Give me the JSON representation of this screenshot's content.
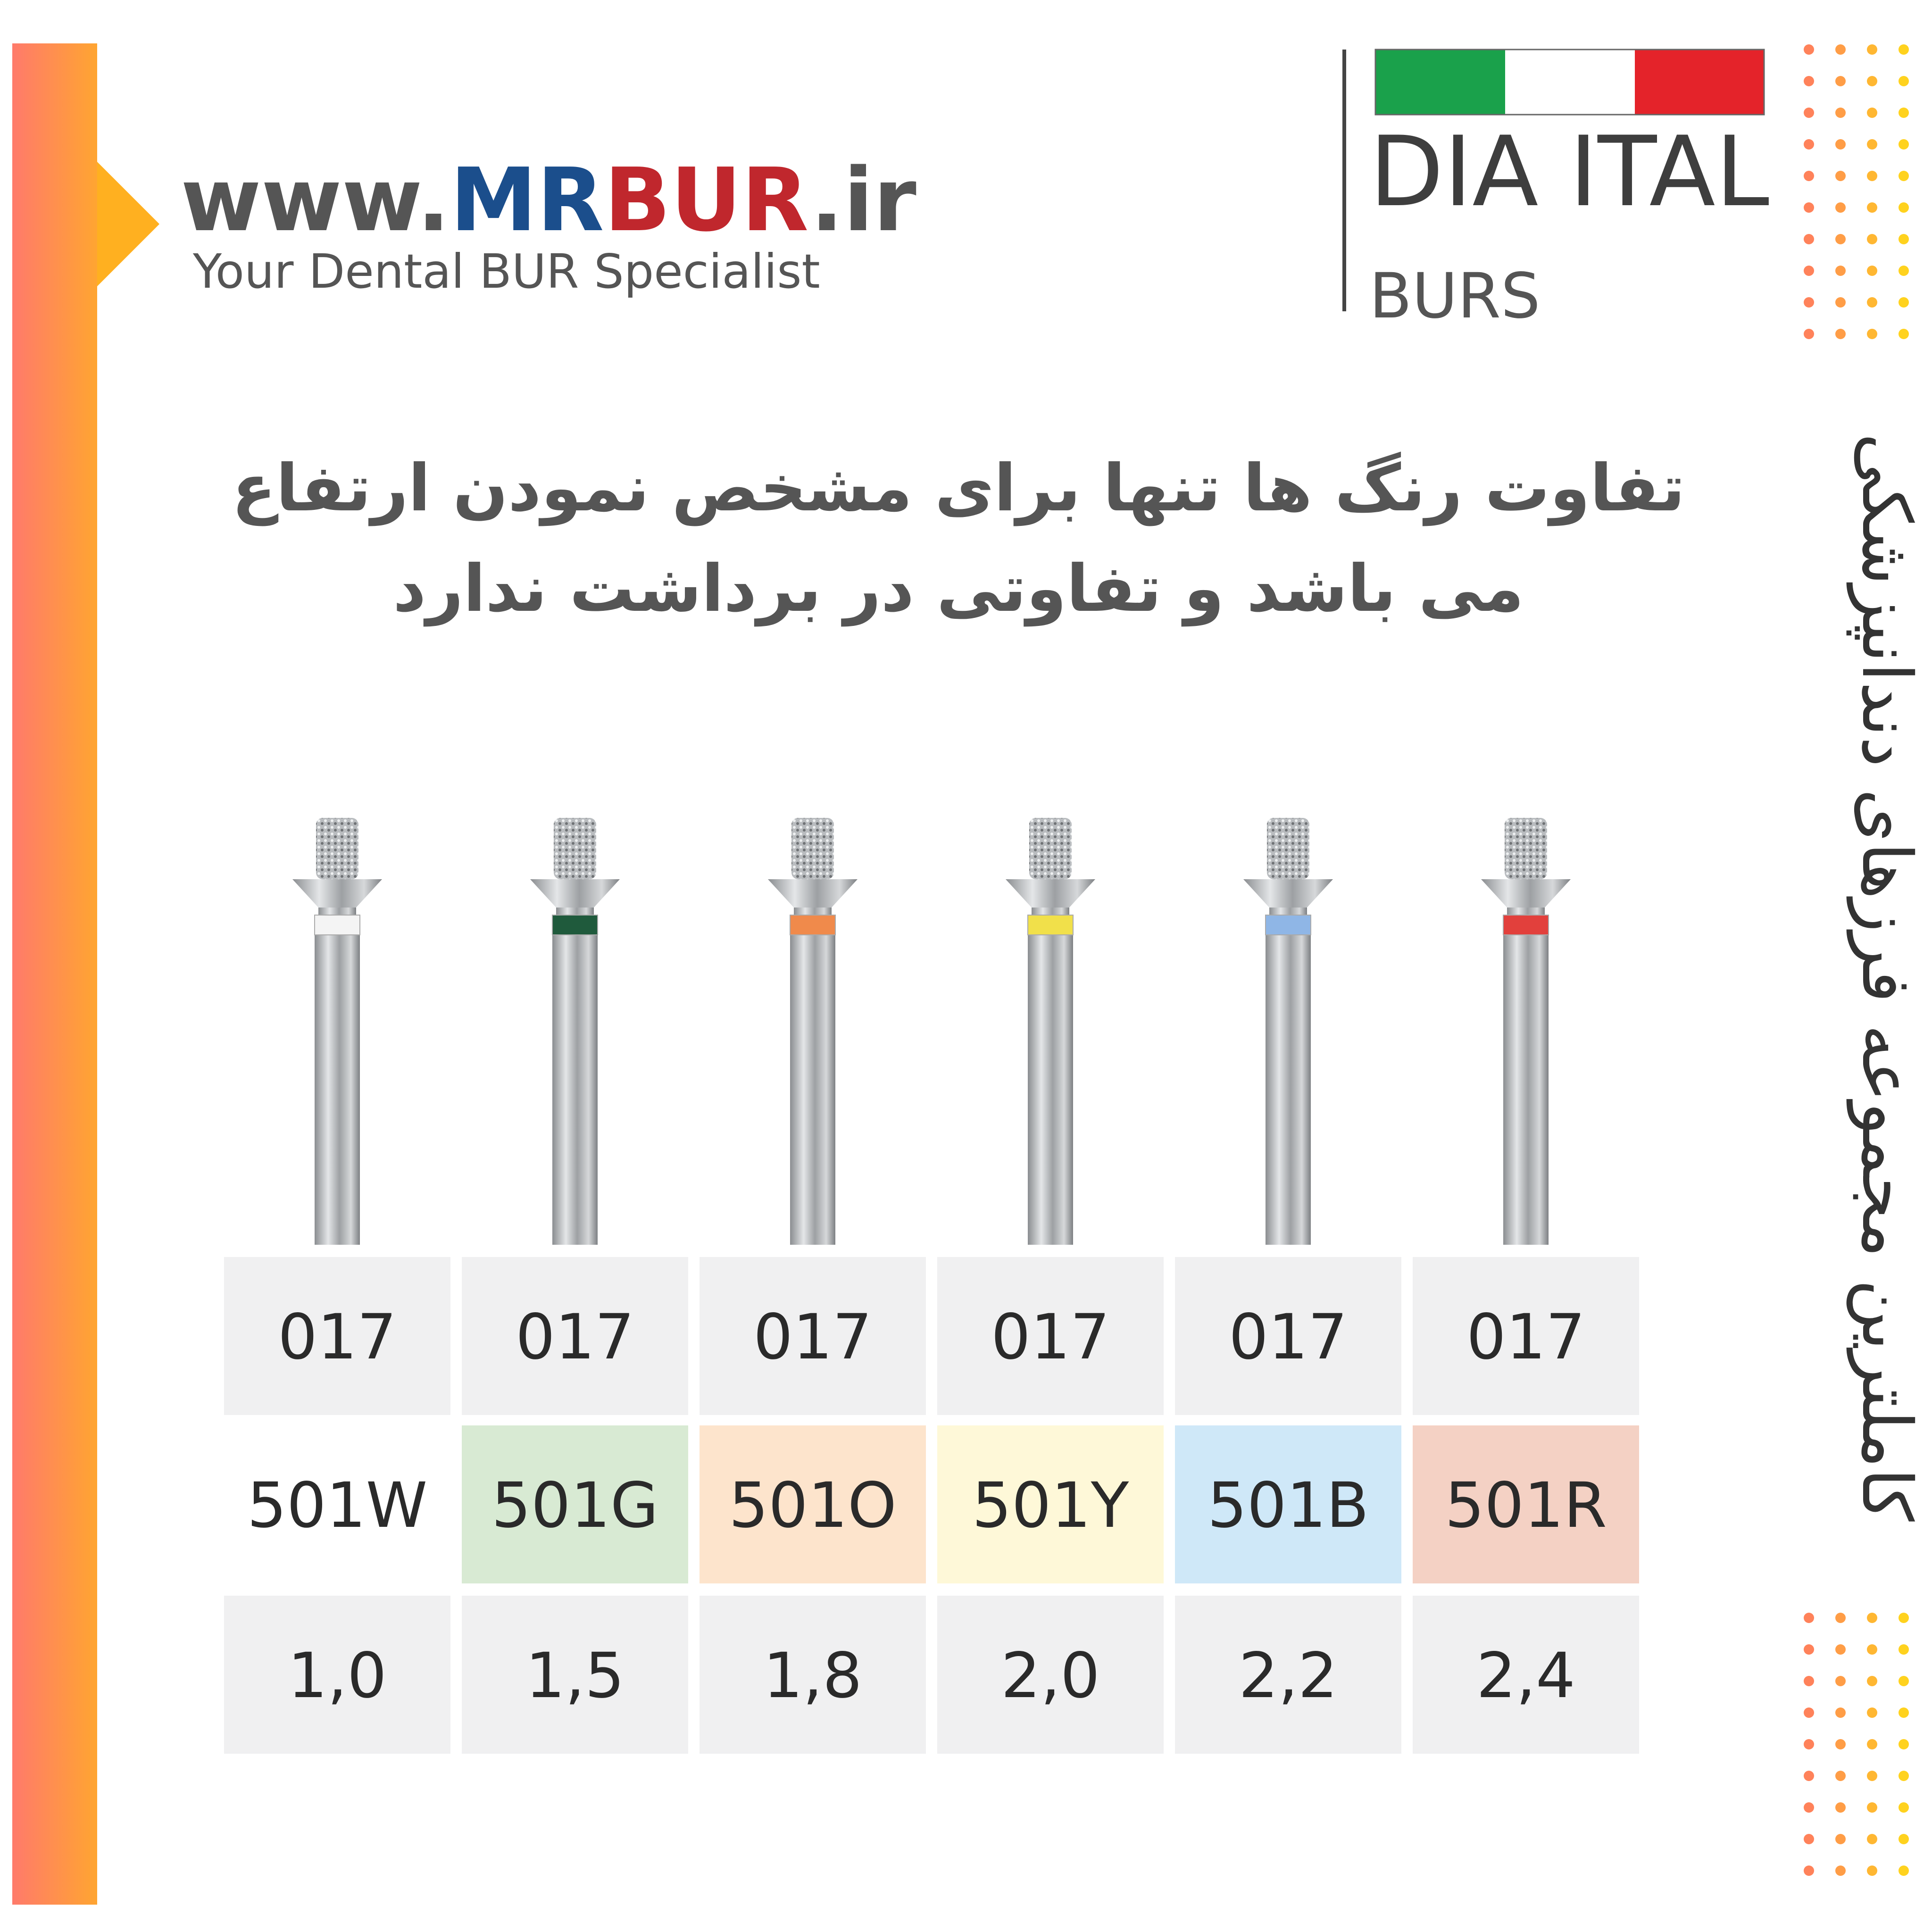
{
  "logo": {
    "prefix": "www.",
    "mr": "MR",
    "bur": "BUR",
    "suffix": ".ir",
    "tagline": "Your Dental BUR Specialist"
  },
  "brand": {
    "name": "DIA ITAL",
    "sub": "BURS"
  },
  "heading": {
    "line1": "تفاوت رنگ ها تنها برای مشخص نمودن ارتفاع",
    "line2": "می باشد و تفاوتی در برداشت ندارد"
  },
  "side_text": "کاملترین مجموعه فرزهای دندانپزشکی",
  "table": {
    "columns": [
      {
        "size": "017",
        "code": "501W",
        "diameter": "1,0",
        "band_color": "#f4f4f4",
        "cell_color": "#ffffff"
      },
      {
        "size": "017",
        "code": "501G",
        "diameter": "1,5",
        "band_color": "#1f5a3c",
        "cell_color": "#d8ead3"
      },
      {
        "size": "017",
        "code": "501O",
        "diameter": "1,8",
        "band_color": "#f08a4b",
        "cell_color": "#fde4cc"
      },
      {
        "size": "017",
        "code": "501Y",
        "diameter": "2,0",
        "band_color": "#f1e04a",
        "cell_color": "#fef8d8"
      },
      {
        "size": "017",
        "code": "501B",
        "diameter": "2,2",
        "band_color": "#8fb6e6",
        "cell_color": "#cfe8f8"
      },
      {
        "size": "017",
        "code": "501R",
        "diameter": "2,4",
        "band_color": "#e2403c",
        "cell_color": "#f4d1c4"
      }
    ]
  }
}
